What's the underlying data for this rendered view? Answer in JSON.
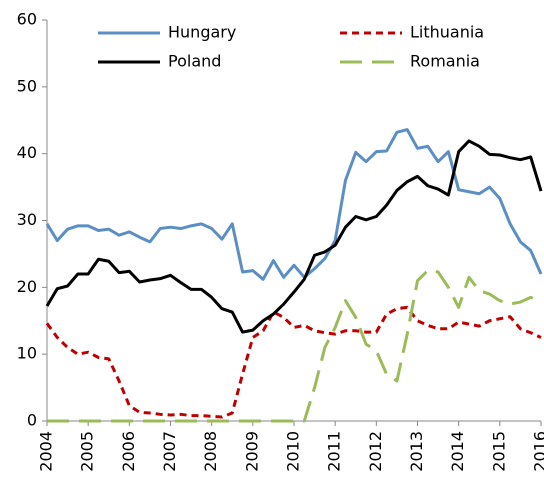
{
  "chart_data": {
    "type": "line",
    "categories": [
      "2004",
      null,
      null,
      null,
      "2005",
      null,
      null,
      null,
      "2006",
      null,
      null,
      null,
      "2007",
      null,
      null,
      null,
      "2008",
      null,
      null,
      null,
      "2009",
      null,
      null,
      null,
      "2010",
      null,
      null,
      null,
      "2011",
      null,
      null,
      null,
      "2012",
      null,
      null,
      null,
      "2013",
      null,
      null,
      null,
      "2014",
      null,
      null,
      null,
      "2015",
      null,
      null,
      null,
      "2016"
    ],
    "ylim": [
      0,
      60
    ],
    "yticks": [
      0,
      10,
      20,
      30,
      40,
      50,
      60
    ],
    "grid": false,
    "legend": "top",
    "series": [
      {
        "name": "Hungary",
        "color": "#5b8ec4",
        "dash": "solid",
        "values": [
          29.5,
          27,
          28.7,
          29.2,
          29.2,
          28.5,
          28.7,
          27.8,
          28.3,
          27.5,
          26.8,
          28.8,
          29,
          28.8,
          29.2,
          29.5,
          28.8,
          27.2,
          29.5,
          22.3,
          22.5,
          21.2,
          24,
          21.5,
          23.3,
          21.5,
          22.8,
          24.3,
          27,
          36,
          40.2,
          38.8,
          40.3,
          40.4,
          43.2,
          43.6,
          40.8,
          41.1,
          38.8,
          40.3,
          34.6,
          34.3,
          34,
          35,
          33.3,
          29.5,
          26.8,
          25.5,
          22
        ]
      },
      {
        "name": "Lithuania",
        "color": "#c00000",
        "dash": "short",
        "values": [
          14.6,
          12.5,
          11,
          10,
          10.3,
          9.5,
          9.3,
          6,
          2.3,
          1.3,
          1.2,
          1,
          0.9,
          1,
          0.8,
          0.8,
          0.7,
          0.6,
          1.2,
          7,
          12.5,
          13.5,
          16.3,
          15.5,
          14,
          14.3,
          13.5,
          13.2,
          13,
          13.5,
          13.5,
          13.3,
          13.3,
          16,
          16.8,
          17,
          15,
          14.3,
          13.8,
          13.8,
          14.8,
          14.5,
          14.2,
          15,
          15.3,
          15.6,
          13.8,
          13.2,
          12.5
        ]
      },
      {
        "name": "Poland",
        "color": "#000000",
        "dash": "solid",
        "values": [
          17.2,
          19.8,
          20.2,
          22,
          22,
          24.2,
          23.9,
          22.2,
          22.4,
          20.8,
          21.1,
          21.3,
          21.8,
          20.7,
          19.7,
          19.7,
          18.5,
          16.8,
          16.3,
          13.3,
          13.6,
          15,
          16,
          17.5,
          19.3,
          21.2,
          24.8,
          25.3,
          26.3,
          29,
          30.6,
          30.1,
          30.6,
          32.3,
          34.5,
          35.8,
          36.6,
          35.2,
          34.7,
          33.8,
          40.3,
          41.9,
          41.1,
          39.9,
          39.8,
          39.4,
          39.1,
          39.5,
          34.4
        ]
      },
      {
        "name": "Romania",
        "color": "#9bbb59",
        "dash": "long",
        "values": [
          0,
          0,
          0,
          0,
          0,
          0,
          0,
          0,
          0,
          0,
          0,
          0,
          0,
          0,
          0,
          0,
          0,
          0,
          0,
          0,
          0,
          0,
          0,
          0,
          0,
          0,
          5,
          11,
          14,
          18,
          15.5,
          11.5,
          10.5,
          7,
          6,
          13,
          21,
          22.5,
          22.3,
          20,
          17,
          21.5,
          19.5,
          19,
          18,
          17.5,
          17.8,
          18.5,
          17.8
        ]
      }
    ]
  }
}
